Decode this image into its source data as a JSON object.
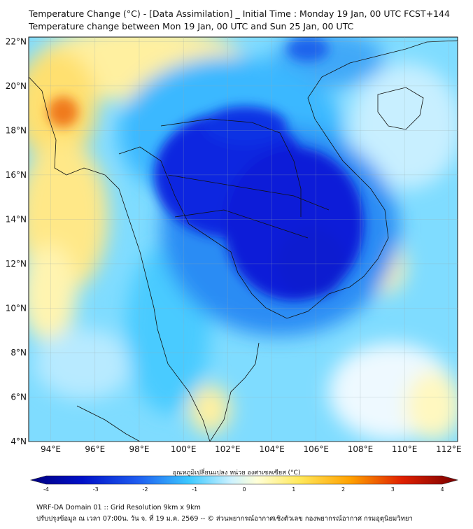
{
  "header": {
    "title_line1": "Temperature Change (°C) - [Data Assimilation] _ Initial Time : Monday 19 Jan, 00 UTC FCST+144",
    "title_line2": "Temperature change between Mon 19 Jan, 00 UTC and Sun 25 Jan, 00 UTC"
  },
  "map": {
    "lat_labels": [
      "22°N",
      "20°N",
      "18°N",
      "16°N",
      "14°N",
      "12°N",
      "10°N",
      "8°N",
      "6°N",
      "4°N"
    ],
    "lat_values": [
      22,
      20,
      18,
      16,
      14,
      12,
      10,
      8,
      6,
      4
    ],
    "lon_labels": [
      "94°E",
      "96°E",
      "98°E",
      "100°E",
      "102°E",
      "104°E",
      "106°E",
      "108°E",
      "110°E",
      "112°E"
    ],
    "lon_values": [
      94,
      96,
      98,
      100,
      102,
      104,
      106,
      108,
      110,
      112
    ],
    "lon_range": [
      93,
      112.4
    ],
    "lat_range": [
      4,
      22.2
    ],
    "colors": {
      "strong_cold": "#0a1ed8",
      "cold": "#1e6cf0",
      "cool": "#3ec8ff",
      "light_cool": "#9fe6ff",
      "neutral": "#e6f8ff",
      "warm": "#fff4a8",
      "warmer": "#ffd24a",
      "hot": "#f07a1a"
    }
  },
  "colorbar": {
    "title": "อุณหภูมิเปลี่ยนแปลง หน่วย องศาเซลเซียส (°C)",
    "ticks": [
      "-4",
      "-3",
      "-2",
      "-1",
      "0",
      "1",
      "2",
      "3",
      "4"
    ],
    "tick_values": [
      -4,
      -3,
      -2,
      -1,
      0,
      1,
      2,
      3,
      4
    ],
    "range": [
      -4,
      4
    ]
  },
  "footer": {
    "line1": "WRF-DA Domain 01 :: Grid Resolution 9km x 9km",
    "line2": "ปรับปรุงข้อมูล ณ เวลา 07:00น. วัน จ. ที่ 19 ม.ค. 2569 -- © ส่วนพยากรณ์อากาศเชิงตัวเลข กองพยากรณ์อากาศ กรมอุตุนิยมวิทยา"
  }
}
